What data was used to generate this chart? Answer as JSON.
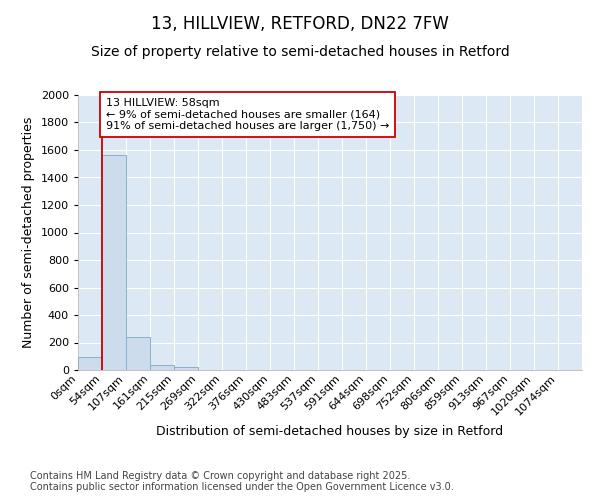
{
  "title": "13, HILLVIEW, RETFORD, DN22 7FW",
  "subtitle": "Size of property relative to semi-detached houses in Retford",
  "xlabel": "Distribution of semi-detached houses by size in Retford",
  "ylabel": "Number of semi-detached properties",
  "bin_labels": [
    "0sqm",
    "54sqm",
    "107sqm",
    "161sqm",
    "215sqm",
    "269sqm",
    "322sqm",
    "376sqm",
    "430sqm",
    "483sqm",
    "537sqm",
    "591sqm",
    "644sqm",
    "698sqm",
    "752sqm",
    "806sqm",
    "859sqm",
    "913sqm",
    "967sqm",
    "1020sqm",
    "1074sqm"
  ],
  "bar_values": [
    95,
    1565,
    240,
    38,
    20,
    0,
    0,
    0,
    0,
    0,
    0,
    0,
    0,
    0,
    0,
    0,
    0,
    0,
    0,
    0,
    0
  ],
  "bar_color": "#ccdcec",
  "bar_edge_color": "#8ab0cc",
  "highlight_line_color": "#cc0000",
  "annotation_text": "13 HILLVIEW: 58sqm\n← 9% of semi-detached houses are smaller (164)\n91% of semi-detached houses are larger (1,750) →",
  "annotation_box_facecolor": "#ffffff",
  "annotation_box_edgecolor": "#cc0000",
  "ylim": [
    0,
    2000
  ],
  "yticks": [
    0,
    200,
    400,
    600,
    800,
    1000,
    1200,
    1400,
    1600,
    1800,
    2000
  ],
  "figure_background": "#ffffff",
  "plot_background": "#dce8f4",
  "grid_color": "#ffffff",
  "footer_text": "Contains HM Land Registry data © Crown copyright and database right 2025.\nContains public sector information licensed under the Open Government Licence v3.0.",
  "title_fontsize": 12,
  "subtitle_fontsize": 10,
  "axis_label_fontsize": 9,
  "tick_fontsize": 8,
  "annotation_fontsize": 8,
  "footer_fontsize": 7
}
